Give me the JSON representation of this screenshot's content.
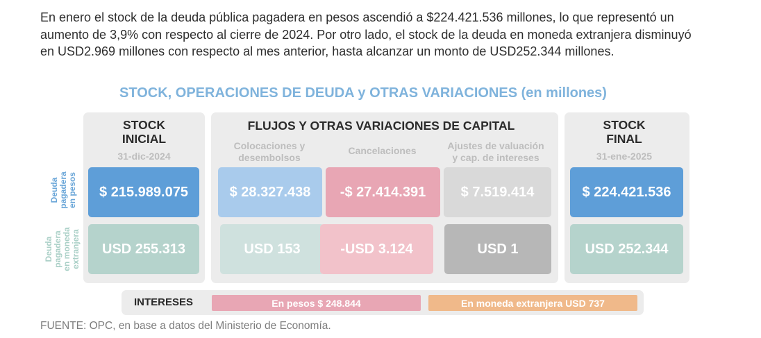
{
  "intro": "En enero el stock de la deuda pública pagadera en pesos ascendió a $224.421.536 millones, lo que representó un aumento de 3,9% con respecto al cierre de 2024. Por otro lado, el stock de la deuda en moneda extranjera disminuyó en USD2.969 millones con respecto al mes anterior, hasta alcanzar un monto de USD252.344 millones.",
  "title": "STOCK, OPERACIONES DE DEUDA y OTRAS VARIACIONES (en millones)",
  "stock_inicial": {
    "title": "STOCK\nINICIAL",
    "date": "31-dic-2024",
    "pesos": "$ 215.989.075",
    "usd": "USD 255.313"
  },
  "flujos": {
    "title": "FLUJOS Y OTRAS VARIACIONES DE CAPITAL",
    "col1": {
      "label": "Colocaciones y\ndesembolsos",
      "pesos": "$ 28.327.438",
      "usd": "USD 153"
    },
    "col2": {
      "label": "Cancelaciones",
      "pesos": "-$ 27.414.391",
      "usd": "-USD 3.124"
    },
    "col3": {
      "label": "Ajustes de valuación\ny cap. de intereses",
      "pesos": "$ 7.519.414",
      "usd": "USD 1"
    }
  },
  "stock_final": {
    "title": "STOCK\nFINAL",
    "date": "31-ene-2025",
    "pesos": "$ 224.421.536",
    "usd": "USD 252.344"
  },
  "row_labels": {
    "pesos": "Deuda\npagadera\nen pesos",
    "usd": "Deuda\npagadera\nen moneda\nextranjera"
  },
  "intereses": {
    "label": "INTERESES",
    "pesos": "En pesos $ 248.844",
    "usd": "En moneda extranjera USD 737"
  },
  "source": "FUENTE: OPC, en base a datos del Ministerio de Economía.",
  "colors": {
    "row_label_pesos": "#6aa6d8",
    "row_label_usd": "#a9cfc6",
    "int_pesos": "#e8a6b4",
    "int_usd": "#f0b98a"
  }
}
